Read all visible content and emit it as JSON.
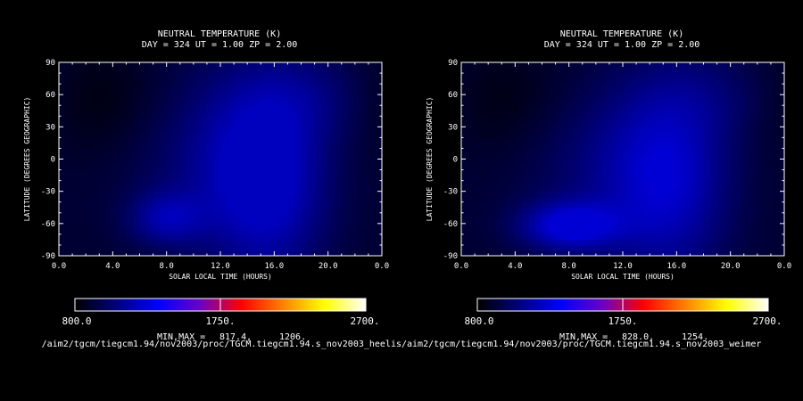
{
  "colors": {
    "background": "#000000",
    "text": "#ffffff",
    "colorbar": [
      "#000000",
      "#000080",
      "#0000ff",
      "#6a00c8",
      "#ff0000",
      "#ff8000",
      "#ffff00",
      "#ffffff"
    ]
  },
  "chart_data": [
    {
      "type": "heatmap",
      "title_line1": "NEUTRAL TEMPERATURE (K)",
      "title_line2": "DAY = 324  UT =  1.00  ZP =   2.00",
      "xlabel": "SOLAR LOCAL TIME (HOURS)",
      "ylabel": "LATITUDE (DEGREES GEOGRAPHIC)",
      "xlim": [
        0,
        24
      ],
      "ylim": [
        -90,
        90
      ],
      "xticks": [
        "0.0",
        "4.0",
        "8.0",
        "12.0",
        "16.0",
        "20.0",
        "0.0"
      ],
      "xtick_values": [
        0,
        4,
        8,
        12,
        16,
        20,
        24
      ],
      "yticks": [
        "90",
        "60",
        "30",
        "0",
        "-30",
        "-60",
        "-90"
      ],
      "ytick_values": [
        90,
        60,
        30,
        0,
        -30,
        -60,
        -90
      ],
      "colorbar": {
        "min_label": "800.0",
        "mid_label": "1750.",
        "max_label": "2700.",
        "min": 800,
        "max": 2700,
        "mid": 1750
      },
      "minmax_label": "MIN,MAX =",
      "min_value": "817.4,",
      "max_value": "1206.",
      "min": 817.4,
      "max": 1206,
      "hot_spots": [
        {
          "lt": 15.5,
          "lat": -20,
          "value": 1200,
          "sx": 3.2,
          "sy": 70
        },
        {
          "lt": 8,
          "lat": -55,
          "value": 1120,
          "sx": 2.0,
          "sy": 18
        },
        {
          "lt": 11.5,
          "lat": 5,
          "value": 1040,
          "sx": 4.5,
          "sy": 60
        },
        {
          "lt": 19,
          "lat": 60,
          "value": 1000,
          "sx": 3.5,
          "sy": 30
        }
      ],
      "base_value": 900,
      "cold_spots": [
        {
          "lt": 3,
          "lat": 55,
          "value": 820,
          "sx": 3.5,
          "sy": 35
        }
      ],
      "source": "/aim2/tgcm/tiegcm1.94/nov2003/proc/TGCM.tiegcm1.94.s_nov2003_heelis"
    },
    {
      "type": "heatmap",
      "title_line1": "NEUTRAL TEMPERATURE (K)",
      "title_line2": "DAY = 324  UT =  1.00  ZP =   2.00",
      "xlabel": "SOLAR LOCAL TIME (HOURS)",
      "ylabel": "LATITUDE (DEGREES GEOGRAPHIC)",
      "xlim": [
        0,
        24
      ],
      "ylim": [
        -90,
        90
      ],
      "xticks": [
        "0.0",
        "4.0",
        "8.0",
        "12.0",
        "16.0",
        "20.0",
        "0.0"
      ],
      "xtick_values": [
        0,
        4,
        8,
        12,
        16,
        20,
        24
      ],
      "yticks": [
        "90",
        "60",
        "30",
        "0",
        "-30",
        "-60",
        "-90"
      ],
      "ytick_values": [
        90,
        60,
        30,
        0,
        -30,
        -60,
        -90
      ],
      "colorbar": {
        "min_label": "800.0",
        "mid_label": "1750.",
        "max_label": "2700.",
        "min": 800,
        "max": 2700,
        "mid": 1750
      },
      "minmax_label": "MIN,MAX =",
      "min_value": "828.0,",
      "max_value": "1254.",
      "min": 828,
      "max": 1254,
      "hot_spots": [
        {
          "lt": 8,
          "lat": -62,
          "value": 1250,
          "sx": 2.6,
          "sy": 16
        },
        {
          "lt": 15.5,
          "lat": -20,
          "value": 1170,
          "sx": 3.2,
          "sy": 70
        },
        {
          "lt": 11,
          "lat": -5,
          "value": 1040,
          "sx": 4.5,
          "sy": 55
        },
        {
          "lt": 19,
          "lat": 60,
          "value": 980,
          "sx": 3.5,
          "sy": 30
        }
      ],
      "base_value": 900,
      "cold_spots": [
        {
          "lt": 3,
          "lat": 55,
          "value": 830,
          "sx": 3.5,
          "sy": 35
        }
      ],
      "source": "/aim2/tgcm/tiegcm1.94/nov2003/proc/TGCM.tiegcm1.94.s_nov2003_weimer"
    }
  ]
}
